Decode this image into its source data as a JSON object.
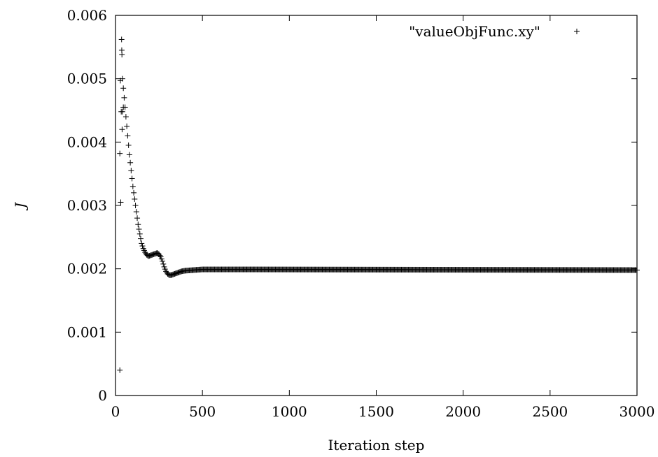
{
  "chart_data": {
    "type": "scatter",
    "xlabel": "Iteration step",
    "ylabel": "J",
    "xlim": [
      0,
      3000
    ],
    "ylim": [
      0,
      0.006
    ],
    "x_ticks": [
      0,
      500,
      1000,
      1500,
      2000,
      2500,
      3000
    ],
    "x_tick_labels": [
      "0",
      "500",
      "1000",
      "1500",
      "2000",
      "2500",
      "3000"
    ],
    "y_ticks": [
      0,
      0.001,
      0.002,
      0.003,
      0.004,
      0.005,
      0.006
    ],
    "y_tick_labels": [
      "0",
      "0.001",
      "0.002",
      "0.003",
      "0.004",
      "0.005",
      "0.006"
    ],
    "grid": false,
    "legend_position": "top-right",
    "marker": "+",
    "color": "#000000",
    "series": [
      {
        "name": "\"valueObjFunc.xy\"",
        "outliers": [
          {
            "x": 25,
            "y": 0.0004
          },
          {
            "x": 25,
            "y": 0.00382
          },
          {
            "x": 30,
            "y": 0.00305
          },
          {
            "x": 28,
            "y": 0.00497
          },
          {
            "x": 35,
            "y": 0.00562
          },
          {
            "x": 36,
            "y": 0.00545
          },
          {
            "x": 37,
            "y": 0.00538
          },
          {
            "x": 33,
            "y": 0.00448
          },
          {
            "x": 40,
            "y": 0.00448
          },
          {
            "x": 38,
            "y": 0.0042
          },
          {
            "x": 45,
            "y": 0.00455
          }
        ],
        "trend": [
          {
            "x": 40,
            "y": 0.005
          },
          {
            "x": 50,
            "y": 0.0047
          },
          {
            "x": 60,
            "y": 0.0044
          },
          {
            "x": 70,
            "y": 0.0041
          },
          {
            "x": 80,
            "y": 0.0038
          },
          {
            "x": 90,
            "y": 0.00355
          },
          {
            "x": 100,
            "y": 0.0033
          },
          {
            "x": 110,
            "y": 0.0031
          },
          {
            "x": 120,
            "y": 0.0029
          },
          {
            "x": 130,
            "y": 0.0027
          },
          {
            "x": 140,
            "y": 0.00255
          },
          {
            "x": 150,
            "y": 0.0024
          },
          {
            "x": 160,
            "y": 0.00232
          },
          {
            "x": 170,
            "y": 0.00226
          },
          {
            "x": 180,
            "y": 0.00222
          },
          {
            "x": 190,
            "y": 0.0022
          },
          {
            "x": 200,
            "y": 0.00221
          },
          {
            "x": 210,
            "y": 0.00222
          },
          {
            "x": 220,
            "y": 0.00223
          },
          {
            "x": 230,
            "y": 0.00224
          },
          {
            "x": 240,
            "y": 0.00225
          },
          {
            "x": 250,
            "y": 0.00223
          },
          {
            "x": 260,
            "y": 0.00219
          },
          {
            "x": 270,
            "y": 0.00212
          },
          {
            "x": 280,
            "y": 0.00203
          },
          {
            "x": 290,
            "y": 0.00196
          },
          {
            "x": 300,
            "y": 0.00192
          },
          {
            "x": 310,
            "y": 0.0019
          },
          {
            "x": 320,
            "y": 0.0019
          },
          {
            "x": 330,
            "y": 0.00191
          },
          {
            "x": 340,
            "y": 0.00192
          },
          {
            "x": 360,
            "y": 0.00194
          },
          {
            "x": 380,
            "y": 0.00196
          },
          {
            "x": 400,
            "y": 0.00197
          },
          {
            "x": 450,
            "y": 0.00198
          },
          {
            "x": 500,
            "y": 0.00199
          },
          {
            "x": 800,
            "y": 0.00199
          },
          {
            "x": 3000,
            "y": 0.00198
          }
        ]
      }
    ]
  }
}
